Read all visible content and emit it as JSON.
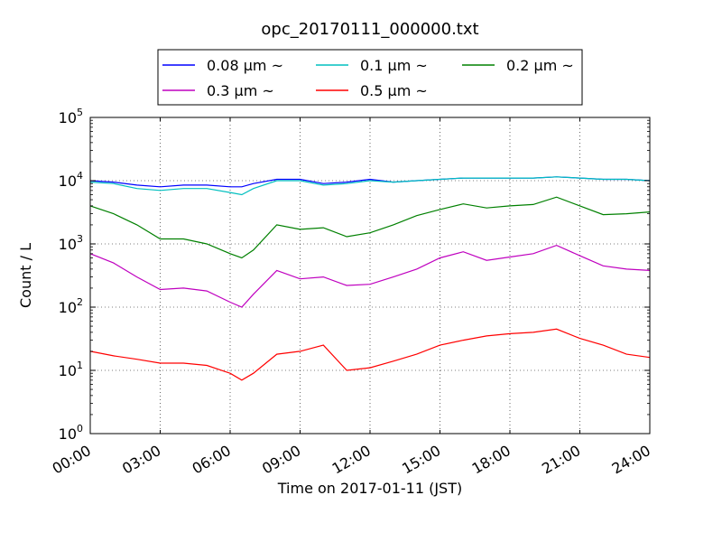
{
  "chart_data": {
    "type": "line",
    "title": "opc_20170111_000000.txt",
    "xlabel": "Time on 2017-01-11 (JST)",
    "ylabel": "Count / L",
    "yscale": "log",
    "ylim": [
      1,
      100000
    ],
    "xlim": [
      "00:00",
      "24:00"
    ],
    "grid": true,
    "legend_position": "top-center",
    "x_ticks": [
      "00:00",
      "03:00",
      "06:00",
      "09:00",
      "12:00",
      "15:00",
      "18:00",
      "21:00",
      "24:00"
    ],
    "y_ticks": [
      {
        "base": "10",
        "exp": "0"
      },
      {
        "base": "10",
        "exp": "1"
      },
      {
        "base": "10",
        "exp": "2"
      },
      {
        "base": "10",
        "exp": "3"
      },
      {
        "base": "10",
        "exp": "4"
      },
      {
        "base": "10",
        "exp": "5"
      }
    ],
    "x": [
      "00:00",
      "01:00",
      "02:00",
      "03:00",
      "04:00",
      "05:00",
      "06:00",
      "06:30",
      "07:00",
      "08:00",
      "09:00",
      "10:00",
      "11:00",
      "12:00",
      "13:00",
      "14:00",
      "15:00",
      "16:00",
      "17:00",
      "18:00",
      "19:00",
      "20:00",
      "21:00",
      "22:00",
      "23:00",
      "24:00"
    ],
    "series": [
      {
        "name": "0.08 μm ~",
        "color": "#0000ff",
        "values": [
          10000,
          9500,
          8500,
          8000,
          8500,
          8500,
          8000,
          8000,
          9000,
          10500,
          10500,
          9000,
          9500,
          10500,
          9500,
          10000,
          10500,
          11000,
          11000,
          11000,
          11000,
          11500,
          11000,
          10500,
          10500,
          10000
        ]
      },
      {
        "name": "0.1 μm ~",
        "color": "#00bfbf",
        "values": [
          9500,
          9000,
          7500,
          7000,
          7500,
          7500,
          6500,
          6000,
          7500,
          10000,
          10000,
          8500,
          9000,
          10000,
          9500,
          10000,
          10500,
          11000,
          11000,
          11000,
          11000,
          11500,
          11000,
          10500,
          10500,
          10000
        ]
      },
      {
        "name": "0.2 μm ~",
        "color": "#008000",
        "values": [
          4000,
          3000,
          2000,
          1200,
          1200,
          1000,
          700,
          600,
          800,
          2000,
          1700,
          1800,
          1300,
          1500,
          2000,
          2800,
          3500,
          4300,
          3700,
          4000,
          4200,
          5500,
          4000,
          2900,
          3000,
          3200
        ]
      },
      {
        "name": "0.3 μm ~",
        "color": "#bf00bf",
        "values": [
          700,
          500,
          300,
          190,
          200,
          180,
          120,
          100,
          160,
          380,
          280,
          300,
          220,
          230,
          300,
          400,
          600,
          750,
          550,
          620,
          700,
          950,
          650,
          450,
          400,
          380
        ]
      },
      {
        "name": "0.5 μm ~",
        "color": "#ff0000",
        "values": [
          20,
          17,
          15,
          13,
          13,
          12,
          9,
          7,
          9,
          18,
          20,
          25,
          10,
          11,
          14,
          18,
          25,
          30,
          35,
          38,
          40,
          45,
          32,
          25,
          18,
          16
        ]
      }
    ]
  }
}
